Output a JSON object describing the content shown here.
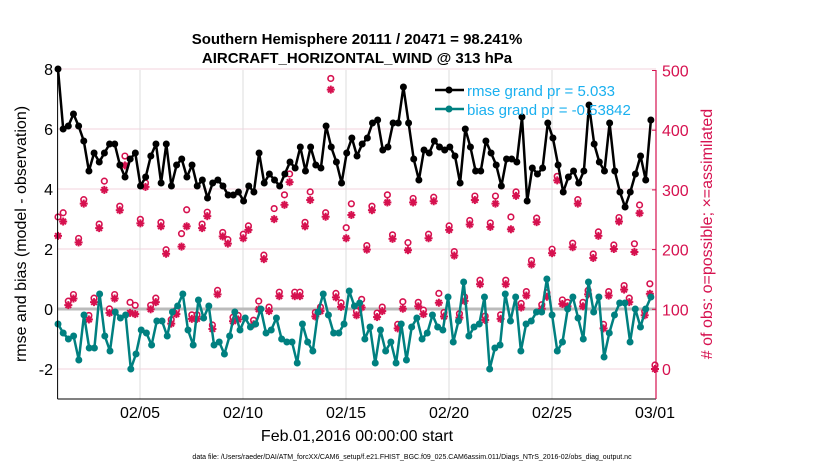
{
  "chart_data": {
    "type": "line",
    "title": [
      "Southern Hemisphere 20111 / 20471 = 98.241%",
      "AIRCRAFT_HORIZONTAL_WIND @ 313 hPa"
    ],
    "xlabel": "Feb.01,2016 00:00:00 start",
    "ylabel": "rmse and bias (model - observation)",
    "ylabel_right": "# of obs: o=possible; ×=assimilated",
    "footnote": "data file: /Users/raeder/DAI/ATM_forcXX/CAM6_setup/f.e21.FHIST_BGC.f09_025.CAM6assim.011/Diags_NTrS_2016-02/obs_diag_output.nc",
    "xlim_days": [
      0,
      29
    ],
    "ylim": [
      -3,
      8
    ],
    "ylim_right": [
      -50,
      500
    ],
    "yticks": [
      "-2",
      "0",
      "2",
      "4",
      "6",
      "8"
    ],
    "yticks_right": [
      "0",
      "100",
      "200",
      "300",
      "400",
      "500"
    ],
    "xticks": [
      {
        "day": 4,
        "label": "02/05"
      },
      {
        "day": 9,
        "label": "02/10"
      },
      {
        "day": 14,
        "label": "02/15"
      },
      {
        "day": 19,
        "label": "02/20"
      },
      {
        "day": 24,
        "label": "02/25"
      },
      {
        "day": 29,
        "label": "03/01"
      }
    ],
    "grid": true,
    "legend_placement": "top-right",
    "colors": {
      "rmse": "#000000",
      "bias": "#008080",
      "obs": "#d6114f",
      "legend_text": "#1ab0ef",
      "zero_line": "#bbbbbb"
    },
    "series": [
      {
        "name": "rmse",
        "legend": "rmse grand pr = 5.033",
        "x_first_day": 0.02,
        "x_last_day": 28.8,
        "values": [
          8.0,
          6.0,
          6.1,
          6.5,
          6.1,
          5.6,
          4.6,
          5.2,
          4.9,
          5.2,
          5.5,
          5.5,
          4.8,
          4.4,
          5.0,
          5.2,
          4.1,
          4.4,
          5.1,
          5.5,
          4.2,
          5.5,
          4.1,
          4.8,
          5.0,
          4.4,
          4.8,
          4.1,
          4.3,
          3.7,
          4.2,
          4.3,
          4.1,
          3.8,
          3.8,
          3.9,
          3.6,
          4.1,
          3.9,
          5.2,
          4.2,
          4.5,
          4.3,
          4.1,
          4.5,
          4.9,
          4.7,
          5.4,
          4.6,
          5.4,
          4.8,
          4.7,
          6.1,
          5.4,
          4.9,
          4.2,
          5.2,
          5.7,
          5.1,
          5.5,
          5.7,
          6.2,
          6.3,
          5.3,
          5.4,
          6.2,
          6.2,
          7.4,
          6.2,
          5.0,
          4.3,
          5.3,
          5.2,
          5.6,
          5.4,
          5.3,
          5.4,
          5.1,
          4.2,
          6.0,
          5.4,
          4.6,
          4.6,
          5.6,
          5.2,
          4.8,
          4.1,
          5.0,
          5.0,
          4.9,
          6.4,
          3.6,
          4.7,
          4.5,
          4.7,
          6.2,
          5.7,
          4.8,
          3.9,
          4.4,
          4.6,
          4.2,
          4.6,
          6.8,
          5.5,
          4.9,
          4.6,
          6.2,
          4.6,
          3.9,
          3.4,
          3.9,
          4.5,
          5.1,
          4.3,
          6.3
        ]
      },
      {
        "name": "bias",
        "legend": "bias grand pr = -0.53842",
        "x_first_day": 0.02,
        "x_last_day": 28.8,
        "values": [
          -0.5,
          -0.8,
          -1.0,
          -0.9,
          -1.7,
          -0.2,
          -1.3,
          -1.3,
          0.5,
          -0.9,
          -1.4,
          -0.1,
          -0.3,
          -0.2,
          -2.0,
          -1.5,
          -0.7,
          -0.8,
          -1.2,
          -0.4,
          -0.4,
          -0.9,
          -0.1,
          0.1,
          0.5,
          -0.7,
          -1.2,
          0.3,
          -0.3,
          0.1,
          -1.2,
          -1.1,
          -1.5,
          -0.9,
          -0.1,
          -0.7,
          -0.3,
          -0.6,
          -0.5,
          0.0,
          -0.8,
          -0.7,
          -0.3,
          -1.0,
          -1.1,
          -1.1,
          -1.8,
          -0.5,
          -1.1,
          -1.4,
          -0.1,
          0.5,
          -0.2,
          -0.8,
          -0.8,
          -0.5,
          0.6,
          0.1,
          0.2,
          -1.0,
          -0.6,
          -1.8,
          -0.7,
          -1.4,
          -1.1,
          -1.8,
          -0.5,
          -1.7,
          -0.6,
          -0.3,
          -1.0,
          -0.8,
          -0.2,
          -0.6,
          -0.7,
          0.4,
          -1.1,
          -0.4,
          0.9,
          -0.9,
          -0.6,
          -0.5,
          0.4,
          -2.0,
          -1.3,
          -1.2,
          0.5,
          -0.4,
          0.4,
          -1.4,
          -0.5,
          -0.4,
          -0.1,
          -0.1,
          1.0,
          -0.2,
          -1.4,
          -1.1,
          0.0,
          0.4,
          -0.3,
          -1.0,
          0.9,
          -0.1,
          0.4,
          -1.6,
          -0.8,
          -0.2,
          0.2,
          0.2,
          -1.1,
          0.0,
          -0.6,
          0.0,
          0.4
        ]
      },
      {
        "name": "obs_assimilated",
        "x_first_day": 0.02,
        "x_last_day": 29.0,
        "values": [
          223,
          247,
          107,
          118,
          212,
          277,
          83,
          112,
          236,
          300,
          94,
          118,
          266,
          341,
          94,
          92,
          244,
          305,
          100,
          112,
          239,
          193,
          76,
          92,
          205,
          239,
          84,
          84,
          236,
          256,
          67,
          125,
          222,
          210,
          80,
          83,
          219,
          233,
          75,
          100,
          184,
          97,
          251,
          122,
          275,
          313,
          122,
          122,
          239,
          283,
          88,
          97,
          255,
          468,
          120,
          104,
          219,
          258,
          90,
          103,
          200,
          266,
          87,
          97,
          279,
          218,
          68,
          101,
          199,
          279,
          105,
          92,
          219,
          281,
          111,
          88,
          233,
          190,
          86,
          114,
          242,
          283,
          142,
          82,
          238,
          277,
          84,
          142,
          234,
          290,
          103,
          123,
          175,
          246,
          101,
          121,
          194,
          316,
          109,
          105,
          204,
          277,
          105,
          125,
          186,
          223,
          68,
          123,
          201,
          247,
          133,
          112,
          196,
          261,
          90,
          126,
          0
        ]
      },
      {
        "name": "obs_possible",
        "x_first_day": 0.02,
        "x_last_day": 29.0,
        "values": [
          248,
          255,
          107,
          118,
          212,
          277,
          83,
          112,
          236,
          308,
          94,
          118,
          266,
          350,
          105,
          100,
          244,
          305,
          100,
          112,
          239,
          193,
          76,
          92,
          220,
          260,
          84,
          84,
          236,
          256,
          67,
          125,
          222,
          210,
          80,
          83,
          219,
          233,
          75,
          107,
          184,
          97,
          262,
          122,
          285,
          320,
          122,
          122,
          239,
          290,
          88,
          97,
          255,
          480,
          120,
          104,
          230,
          270,
          90,
          110,
          200,
          266,
          87,
          97,
          285,
          218,
          68,
          106,
          205,
          279,
          105,
          92,
          219,
          281,
          120,
          88,
          233,
          190,
          86,
          114,
          242,
          283,
          142,
          82,
          238,
          283,
          84,
          142,
          248,
          290,
          103,
          123,
          175,
          246,
          101,
          121,
          194,
          316,
          109,
          105,
          204,
          277,
          105,
          125,
          186,
          223,
          68,
          123,
          201,
          247,
          133,
          112,
          203,
          268,
          90,
          136,
          0
        ]
      }
    ]
  }
}
